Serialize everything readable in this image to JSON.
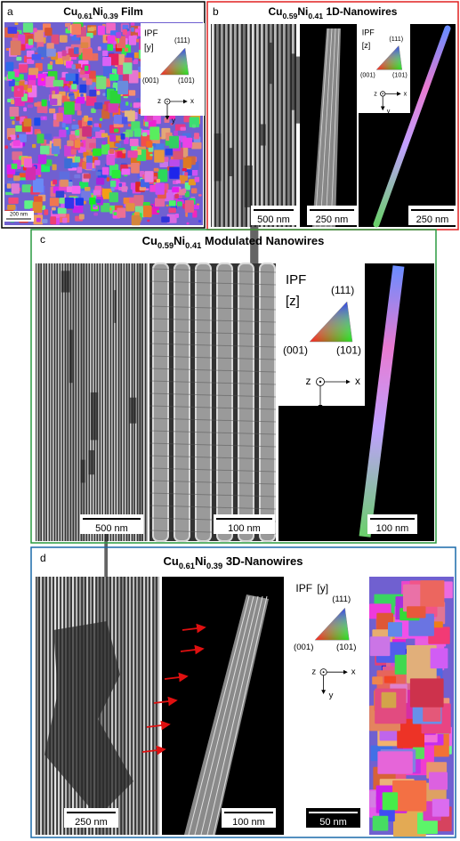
{
  "panels": [
    {
      "label": "a",
      "title": {
        "parts": [
          "Cu",
          "0.61",
          "Ni",
          "0.39"
        ],
        "suffix": "Film"
      },
      "legend": {
        "label": "IPF",
        "direction": "[y]",
        "corners": [
          "(111)",
          "(001)",
          "(101)"
        ],
        "axes": [
          "z",
          "x",
          "y"
        ]
      },
      "scale_bars": [
        "200 nm"
      ]
    },
    {
      "label": "b",
      "title": {
        "parts": [
          "Cu",
          "0.59",
          "Ni",
          "0.41"
        ],
        "suffix": "1D-Nanowires"
      },
      "legend": {
        "label": "IPF",
        "direction": "[z]",
        "corners": [
          "(111)",
          "(001)",
          "(101)"
        ],
        "axes": [
          "z",
          "x",
          "y"
        ]
      },
      "scale_bars": [
        "500 nm",
        "250 nm",
        "250 nm"
      ]
    },
    {
      "label": "c",
      "title": {
        "parts": [
          "Cu",
          "0.59",
          "Ni",
          "0.41"
        ],
        "suffix": "Modulated Nanowires"
      },
      "legend": {
        "label": "IPF",
        "direction": "[z]",
        "corners": [
          "(111)",
          "(001)",
          "(101)"
        ],
        "axes": [
          "z",
          "x",
          "y"
        ]
      },
      "scale_bars": [
        "500 nm",
        "100 nm",
        "100 nm"
      ]
    },
    {
      "label": "d",
      "title": {
        "parts": [
          "Cu",
          "0.61",
          "Ni",
          "0.39"
        ],
        "suffix": "3D-Nanowires"
      },
      "legend": {
        "label": "IPF",
        "direction": "[y]",
        "corners": [
          "(111)",
          "(001)",
          "(101)"
        ],
        "axes": [
          "z",
          "x",
          "y"
        ]
      },
      "scale_bars": [
        "250 nm",
        "100 nm",
        "50 nm"
      ]
    }
  ]
}
